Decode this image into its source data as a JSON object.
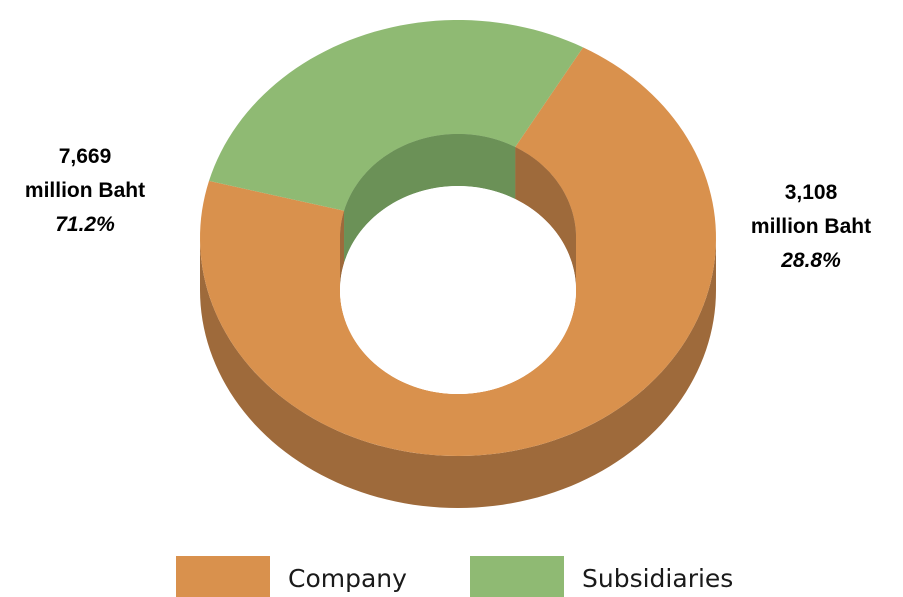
{
  "chart_data": {
    "type": "pie",
    "variant": "3d-doughnut",
    "title": "",
    "categories": [
      "Company",
      "Subsidiaries"
    ],
    "values": [
      7669,
      3108
    ],
    "percent_labels": [
      "71.2%",
      "28.8%"
    ],
    "value_labels": [
      "7,669",
      "3,108"
    ],
    "unit_label": "million Baht",
    "colors": [
      "#D9914D",
      "#8FBA73"
    ],
    "side_colors": [
      "#9E6A3B",
      "#6B9157"
    ],
    "legend_placement": "bottom"
  }
}
